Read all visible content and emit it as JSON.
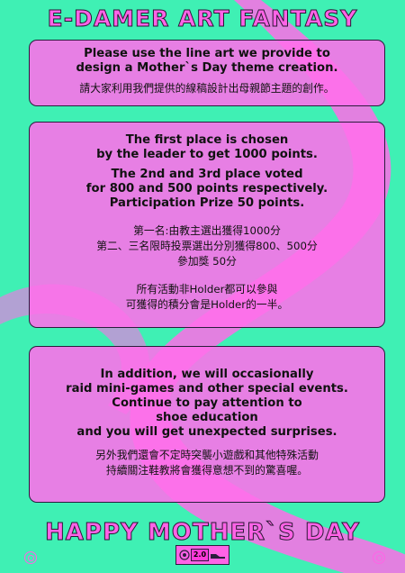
{
  "header": {
    "title": "E-DAMER ART FANTASY"
  },
  "panel1": {
    "en_lines": [
      "Please use the line art we provide to",
      "design a Mother`s Day theme creation."
    ],
    "zh": "請大家利用我們提供的線稿設計出母親節主題的創作。"
  },
  "panel2": {
    "en_block1": [
      "The first place is chosen",
      "by the leader to get 1000 points."
    ],
    "en_block2": [
      "The 2nd and 3rd place voted",
      "for 800 and 500 points respectively.",
      "Participation Prize 50 points."
    ],
    "zh_block1": [
      "第一名:由教主選出獲得1000分",
      "第二、三名限時投票選出分別獲得800、500分",
      "參加獎 50分"
    ],
    "zh_block2": [
      "所有活動非Holder都可以參與",
      "可獲得的積分會是Holder的一半。"
    ]
  },
  "panel3": {
    "en_lines": [
      "In addition, we will occasionally",
      "raid mini-games and other special events.",
      "Continue to pay attention to",
      "shoe education",
      "and you will get unexpected surprises."
    ],
    "zh_lines": [
      "另外我們還會不定時突襲小遊戲和其他特殊活動",
      "持續關注鞋教將會獲得意想不到的驚喜喔。"
    ]
  },
  "footer": {
    "title": "HAPPY MOTHER`S DAY",
    "badge_number": "2.0"
  },
  "colors": {
    "background": "#3ff0b4",
    "accent_pink": "#ff63e6",
    "panel": "#ff6eeb",
    "outline": "#2b1d3d"
  },
  "icons": [
    "wing-logo-icon",
    "seal-logo-icon",
    "shoe-logo-icon",
    "ring-logo-icon"
  ]
}
